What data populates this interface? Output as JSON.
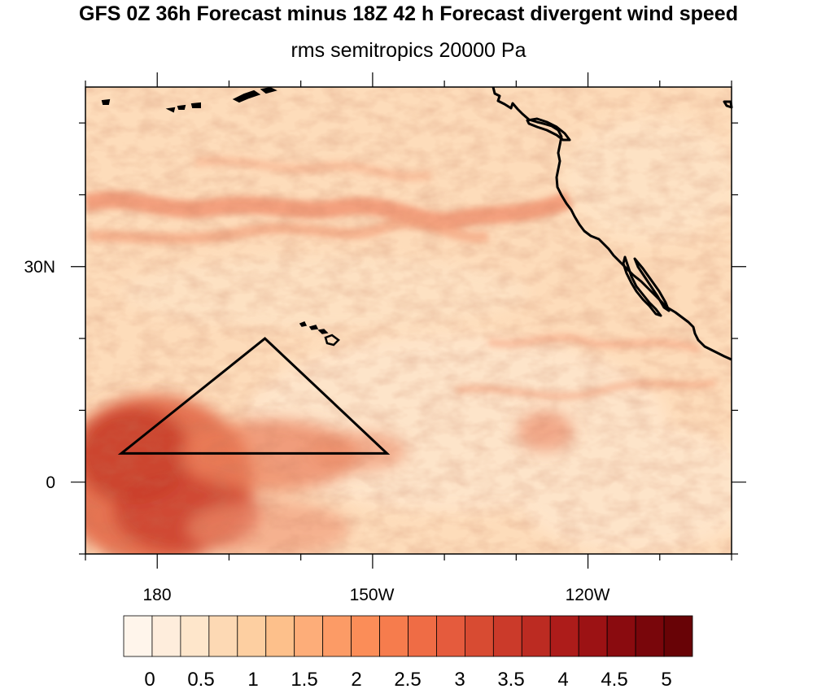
{
  "title": "GFS 0Z 36h Forecast minus 18Z 42 h Forecast divergent wind speed",
  "subtitle": "rms semitropics 20000 Pa",
  "axes": {
    "x_tick_labels": [
      "180",
      "150W",
      "120W"
    ],
    "y_tick_labels": [
      "30N",
      "0"
    ]
  },
  "map": {
    "lon_range": [
      170,
      260
    ],
    "lat_range": [
      -10,
      55
    ],
    "features": [
      "west-coast-north-america",
      "baja-california",
      "hawaii-islands",
      "aleutian-islands"
    ],
    "overlay_triangle": {
      "vertices_lonlat": [
        [
          195,
          20
        ],
        [
          175,
          4
        ],
        [
          212,
          4
        ]
      ]
    }
  },
  "colorbar": {
    "labels": [
      "0",
      "0.5",
      "1",
      "1.5",
      "2",
      "2.5",
      "3",
      "3.5",
      "4",
      "4.5",
      "5"
    ],
    "colors": [
      "#fff5eb",
      "#feeddc",
      "#fee6cb",
      "#fdd9b4",
      "#fdcfa1",
      "#fdc08b",
      "#fdad79",
      "#fc9b66",
      "#fb8d58",
      "#f67c4d",
      "#ef6c45",
      "#e55b3d",
      "#d84b32",
      "#cb3a2a",
      "#bc2b22",
      "#ad1c1a",
      "#9c1214",
      "#8a0b0f",
      "#79060b",
      "#680306"
    ]
  },
  "chart_data": {
    "type": "heatmap",
    "title": "GFS 0Z 36h Forecast minus 18Z 42 h Forecast divergent wind speed",
    "subtitle": "rms semitropics 20000 Pa",
    "x_ticks": [
      "180",
      "150W",
      "120W"
    ],
    "y_ticks": [
      "30N",
      "0"
    ],
    "color_scale": {
      "min": 0,
      "max": 5.5,
      "step": 0.25
    },
    "grid": false
  }
}
